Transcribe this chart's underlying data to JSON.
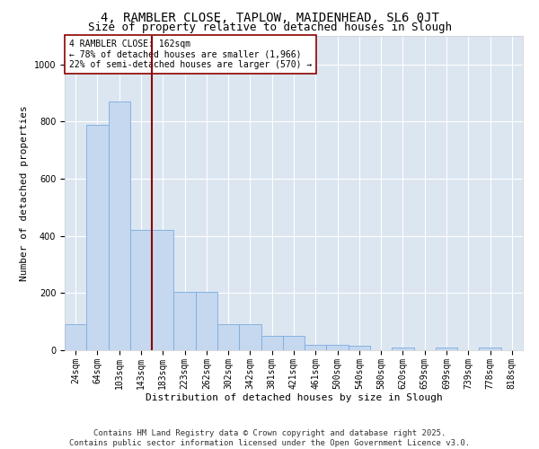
{
  "title": "4, RAMBLER CLOSE, TAPLOW, MAIDENHEAD, SL6 0JT",
  "subtitle": "Size of property relative to detached houses in Slough",
  "xlabel": "Distribution of detached houses by size in Slough",
  "ylabel": "Number of detached properties",
  "categories": [
    "24sqm",
    "64sqm",
    "103sqm",
    "143sqm",
    "183sqm",
    "223sqm",
    "262sqm",
    "302sqm",
    "342sqm",
    "381sqm",
    "421sqm",
    "461sqm",
    "500sqm",
    "540sqm",
    "580sqm",
    "620sqm",
    "659sqm",
    "699sqm",
    "739sqm",
    "778sqm",
    "818sqm"
  ],
  "values": [
    90,
    790,
    870,
    420,
    420,
    205,
    205,
    90,
    90,
    50,
    50,
    20,
    20,
    15,
    0,
    10,
    0,
    10,
    0,
    10,
    0
  ],
  "bar_color": "#c5d8ef",
  "bar_edge_color": "#7aabe0",
  "vline_color": "#8b0000",
  "vline_x_index": 3.5,
  "annotation_text": "4 RAMBLER CLOSE: 162sqm\n← 78% of detached houses are smaller (1,966)\n22% of semi-detached houses are larger (570) →",
  "annotation_box_facecolor": "#ffffff",
  "annotation_box_edgecolor": "#8b0000",
  "ylim": [
    0,
    1100
  ],
  "yticks": [
    0,
    200,
    400,
    600,
    800,
    1000
  ],
  "background_color": "#dce6f1",
  "grid_color": "#ffffff",
  "footer_line1": "Contains HM Land Registry data © Crown copyright and database right 2025.",
  "footer_line2": "Contains public sector information licensed under the Open Government Licence v3.0.",
  "title_fontsize": 10,
  "subtitle_fontsize": 9,
  "axis_label_fontsize": 8,
  "tick_fontsize": 7,
  "annotation_fontsize": 7,
  "footer_fontsize": 6.5,
  "ylabel_fontsize": 8
}
